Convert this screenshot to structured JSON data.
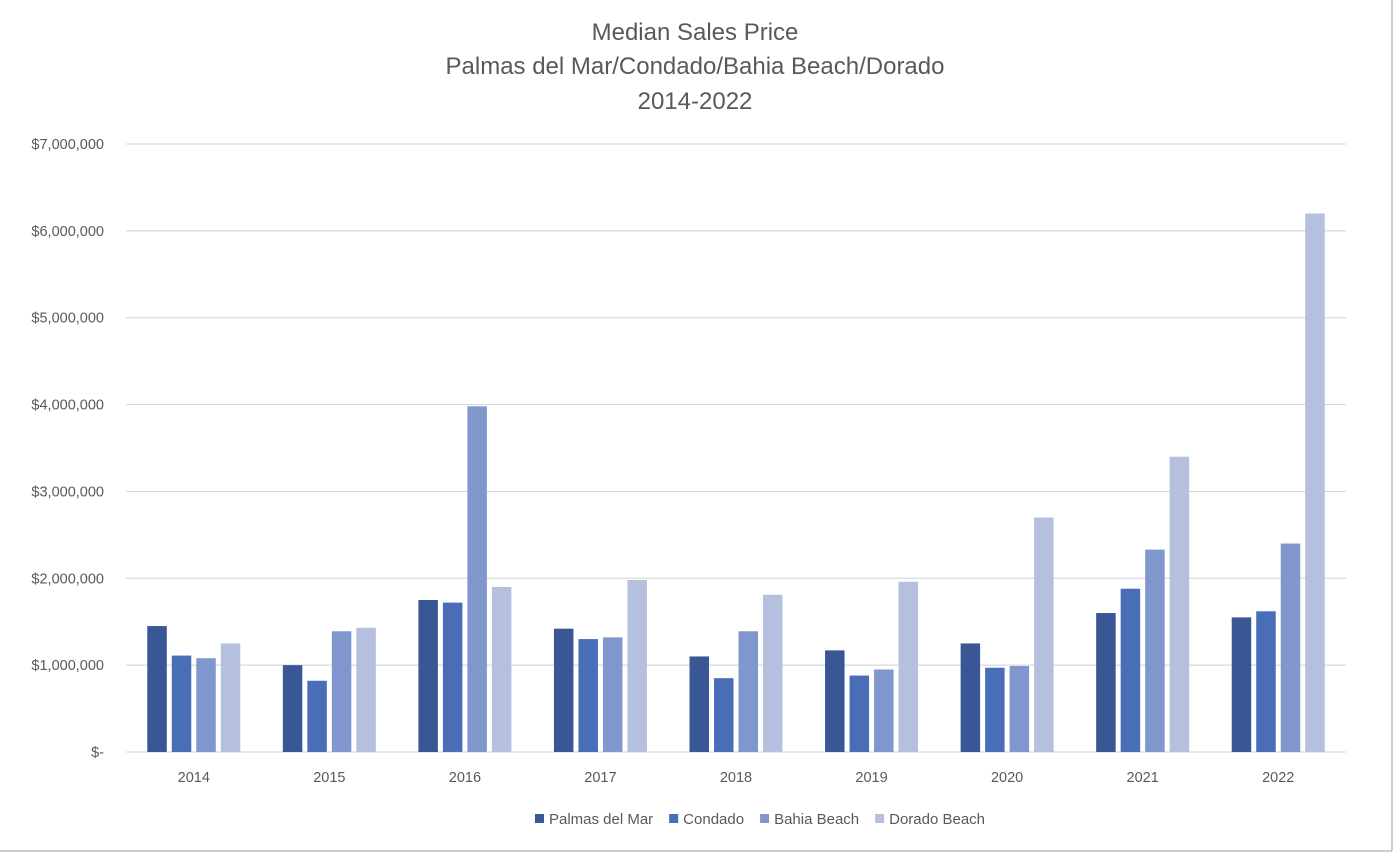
{
  "chart_data": {
    "type": "bar",
    "title": [
      "Median Sales Price",
      "Palmas del Mar/Condado/Bahia Beach/Dorado",
      "2014-2022"
    ],
    "xlabel": "",
    "ylabel": "",
    "categories": [
      "2014",
      "2015",
      "2016",
      "2017",
      "2018",
      "2019",
      "2020",
      "2021",
      "2022"
    ],
    "series": [
      {
        "name": "Palmas del Mar",
        "color": "#3a5795",
        "values": [
          1450000,
          1000000,
          1750000,
          1420000,
          1100000,
          1170000,
          1250000,
          1600000,
          1550000
        ]
      },
      {
        "name": "Condado",
        "color": "#4a6db8",
        "values": [
          1110000,
          820000,
          1720000,
          1300000,
          850000,
          880000,
          970000,
          1880000,
          1620000
        ]
      },
      {
        "name": "Bahia Beach",
        "color": "#7f97cc",
        "values": [
          1080000,
          1390000,
          3980000,
          1320000,
          1390000,
          950000,
          990000,
          2330000,
          2400000
        ]
      },
      {
        "name": "Dorado Beach",
        "color": "#b5c0df",
        "values": [
          1250000,
          1430000,
          1900000,
          1980000,
          1810000,
          1960000,
          2700000,
          3400000,
          6200000
        ]
      }
    ],
    "ylim": [
      0,
      7000000
    ],
    "yticks": [
      0,
      1000000,
      2000000,
      3000000,
      4000000,
      5000000,
      6000000,
      7000000
    ],
    "ytick_labels": [
      "$-",
      "$1,000,000",
      "$2,000,000",
      "$3,000,000",
      "$4,000,000",
      "$5,000,000",
      "$6,000,000",
      "$7,000,000"
    ],
    "grid": true,
    "legend_position": "bottom"
  },
  "colors": {
    "grid": "#d9d9d9",
    "axis_text": "#595959",
    "title": "#595959"
  }
}
